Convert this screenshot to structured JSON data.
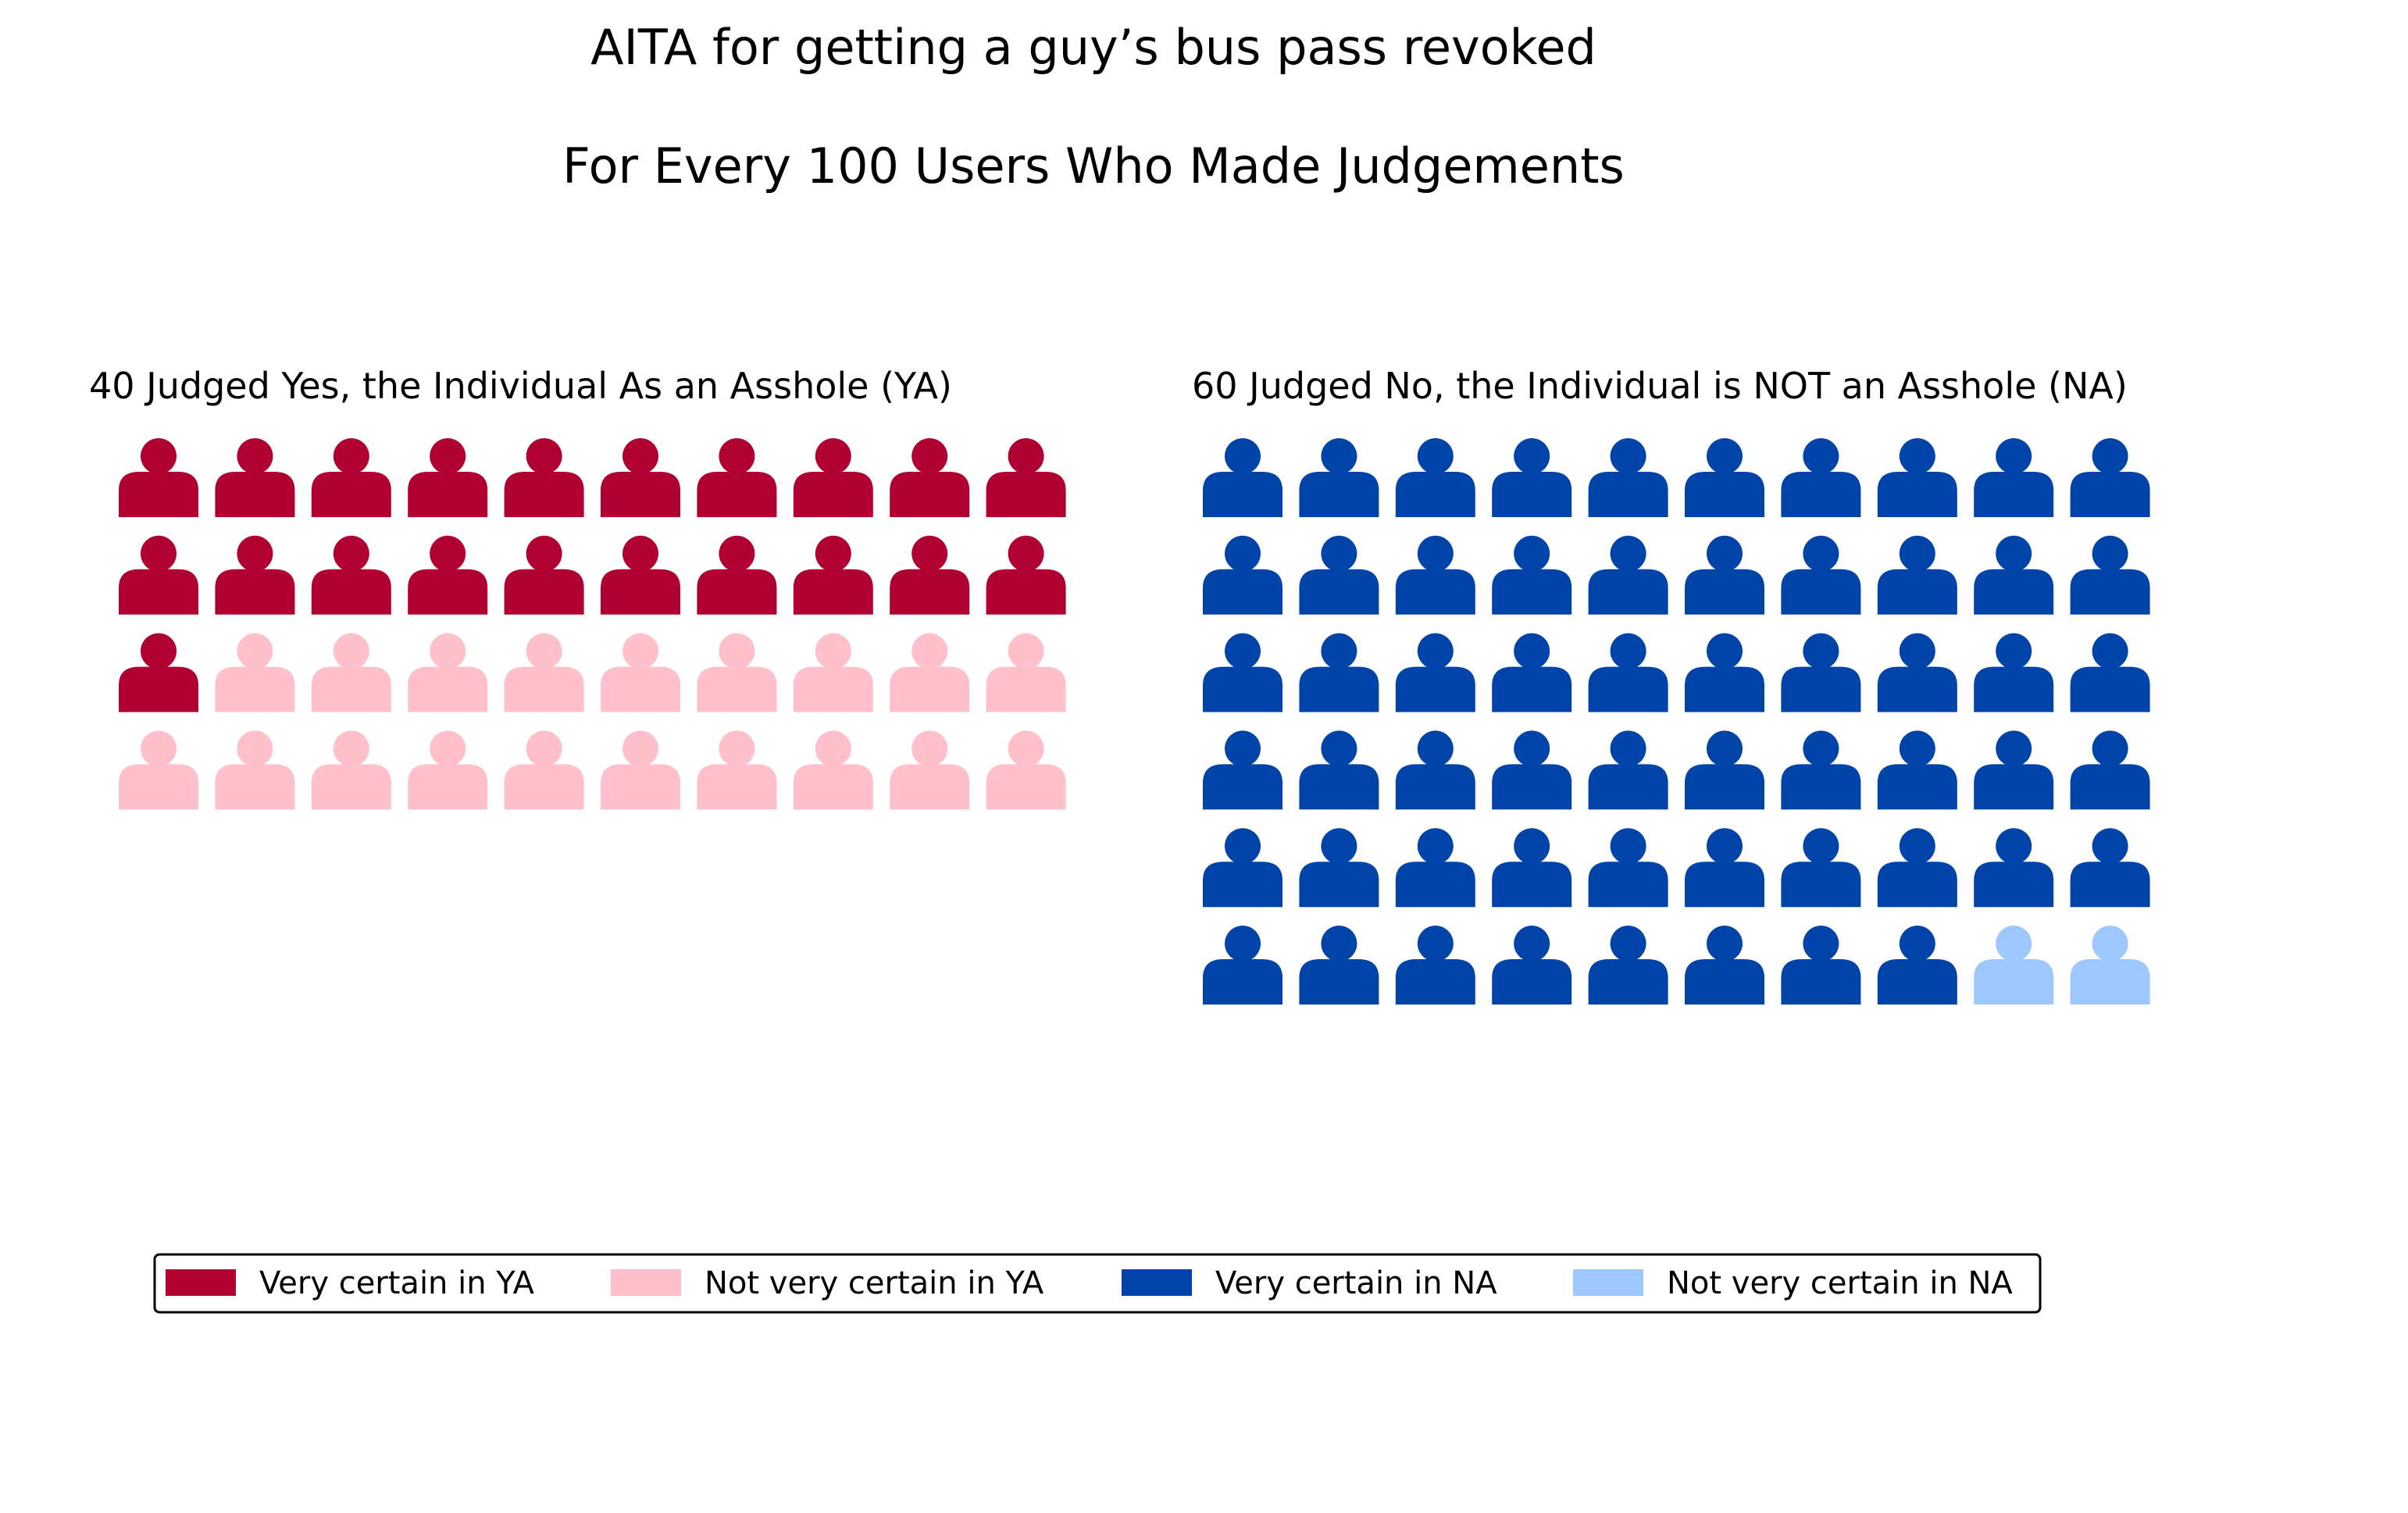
{
  "chart_data": {
    "type": "pictograph",
    "title": "AITA for getting a guy’s bus pass revoked",
    "subtitle": "For Every 100 Users Who Made Judgements",
    "panels": [
      {
        "title": "40 Judged Yes, the Individual As an Asshole (YA)",
        "total": 40,
        "columns": 10,
        "segments": [
          {
            "label": "Very certain in YA",
            "count": 21,
            "color": "#B00032"
          },
          {
            "label": "Not very certain in YA",
            "count": 19,
            "color": "#FFC0CB"
          }
        ]
      },
      {
        "title": "60 Judged No, the Individual is NOT an Asshole (NA)",
        "total": 60,
        "columns": 10,
        "segments": [
          {
            "label": "Very certain in NA",
            "count": 58,
            "color": "#0044AA"
          },
          {
            "label": "Not very certain in NA",
            "count": 2,
            "color": "#9DC8FF"
          }
        ]
      }
    ],
    "legend": {
      "placement": "bottom",
      "items": [
        {
          "label": "Very certain in YA",
          "color": "#B00032"
        },
        {
          "label": "Not very certain in YA",
          "color": "#FFC0CB"
        },
        {
          "label": "Very certain in NA",
          "color": "#0044AA"
        },
        {
          "label": "Not very certain in NA",
          "color": "#9DC8FF"
        }
      ]
    }
  }
}
